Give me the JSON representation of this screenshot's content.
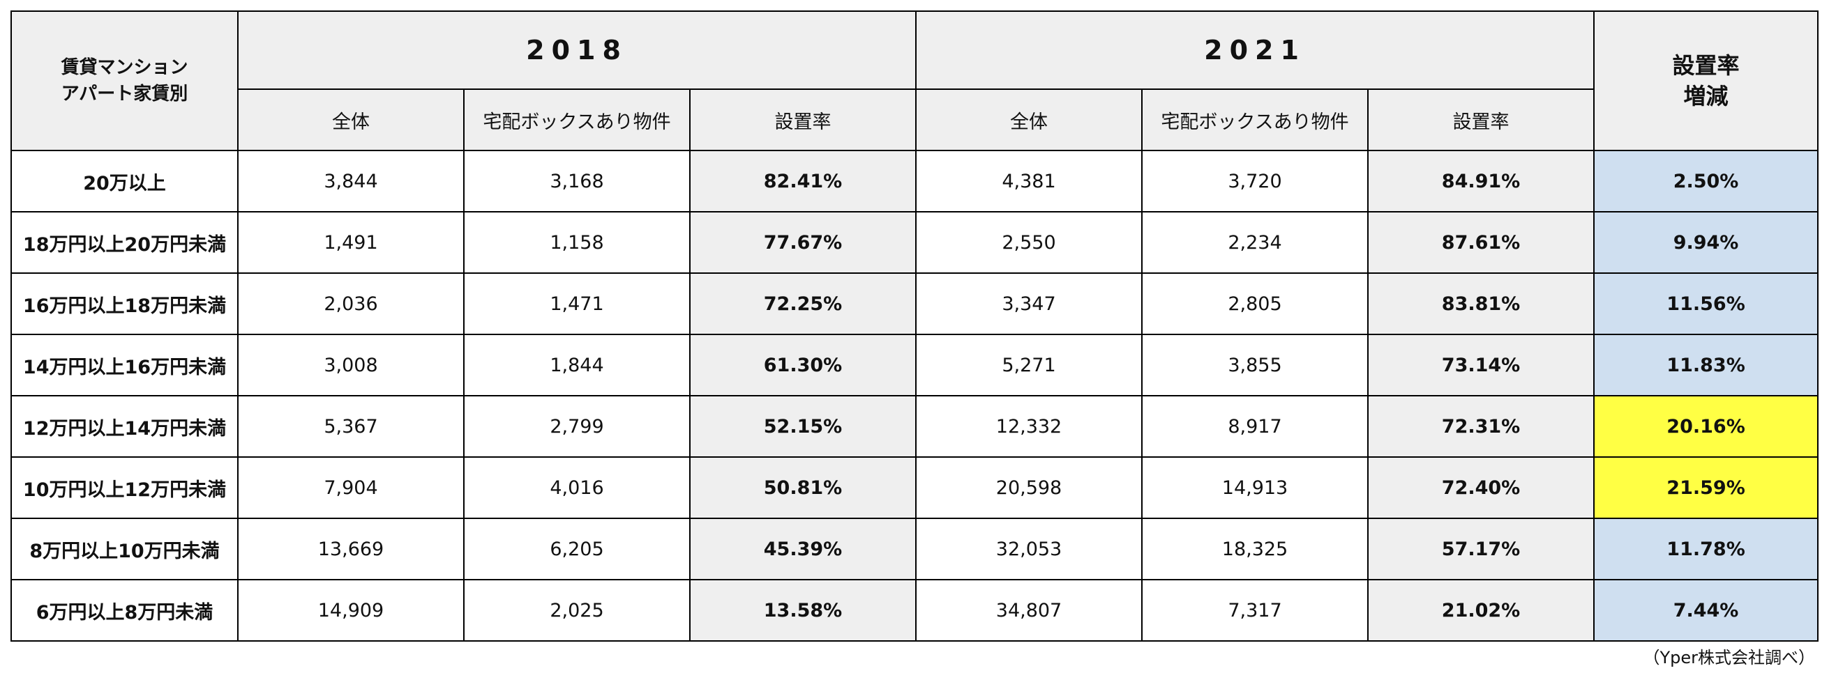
{
  "table": {
    "corner": [
      "賃貸マンション",
      "アパート家賃別"
    ],
    "years": [
      "2018",
      "2021"
    ],
    "sub_headers": [
      "全体",
      "宅配ボックスあり物件",
      "設置率",
      "全体",
      "宅配ボックスあり物件",
      "設置率"
    ],
    "change_header": [
      "設置率",
      "増減"
    ],
    "rows": [
      [
        "20万以上",
        "3,844",
        "3,168",
        "82.41%",
        "4,381",
        "3,720",
        "84.91%",
        "2.50%"
      ],
      [
        "18万円以上20万円未満",
        "1,491",
        "1,158",
        "77.67%",
        "2,550",
        "2,234",
        "87.61%",
        "9.94%"
      ],
      [
        "16万円以上18万円未満",
        "2,036",
        "1,471",
        "72.25%",
        "3,347",
        "2,805",
        "83.81%",
        "11.56%"
      ],
      [
        "14万円以上16万円未満",
        "3,008",
        "1,844",
        "61.30%",
        "5,271",
        "3,855",
        "73.14%",
        "11.83%"
      ],
      [
        "12万円以上14万円未満",
        "5,367",
        "2,799",
        "52.15%",
        "12,332",
        "8,917",
        "72.31%",
        "20.16%"
      ],
      [
        "10万円以上12万円未満",
        "7,904",
        "4,016",
        "50.81%",
        "20,598",
        "14,913",
        "72.40%",
        "21.59%"
      ],
      [
        "8万円以上10万円未満",
        "13,669",
        "6,205",
        "45.39%",
        "32,053",
        "18,325",
        "57.17%",
        "11.78%"
      ],
      [
        "6万円以上8万円未満",
        "14,909",
        "2,025",
        "13.58%",
        "34,807",
        "7,317",
        "21.02%",
        "7.44%"
      ]
    ],
    "change_colors": [
      "#cfdff0",
      "#cfdff0",
      "#cfdff0",
      "#cfdff0",
      "#ffff44",
      "#ffff44",
      "#cfdff0",
      "#cfdff0"
    ],
    "source": "（Yper株式会社調べ）"
  }
}
